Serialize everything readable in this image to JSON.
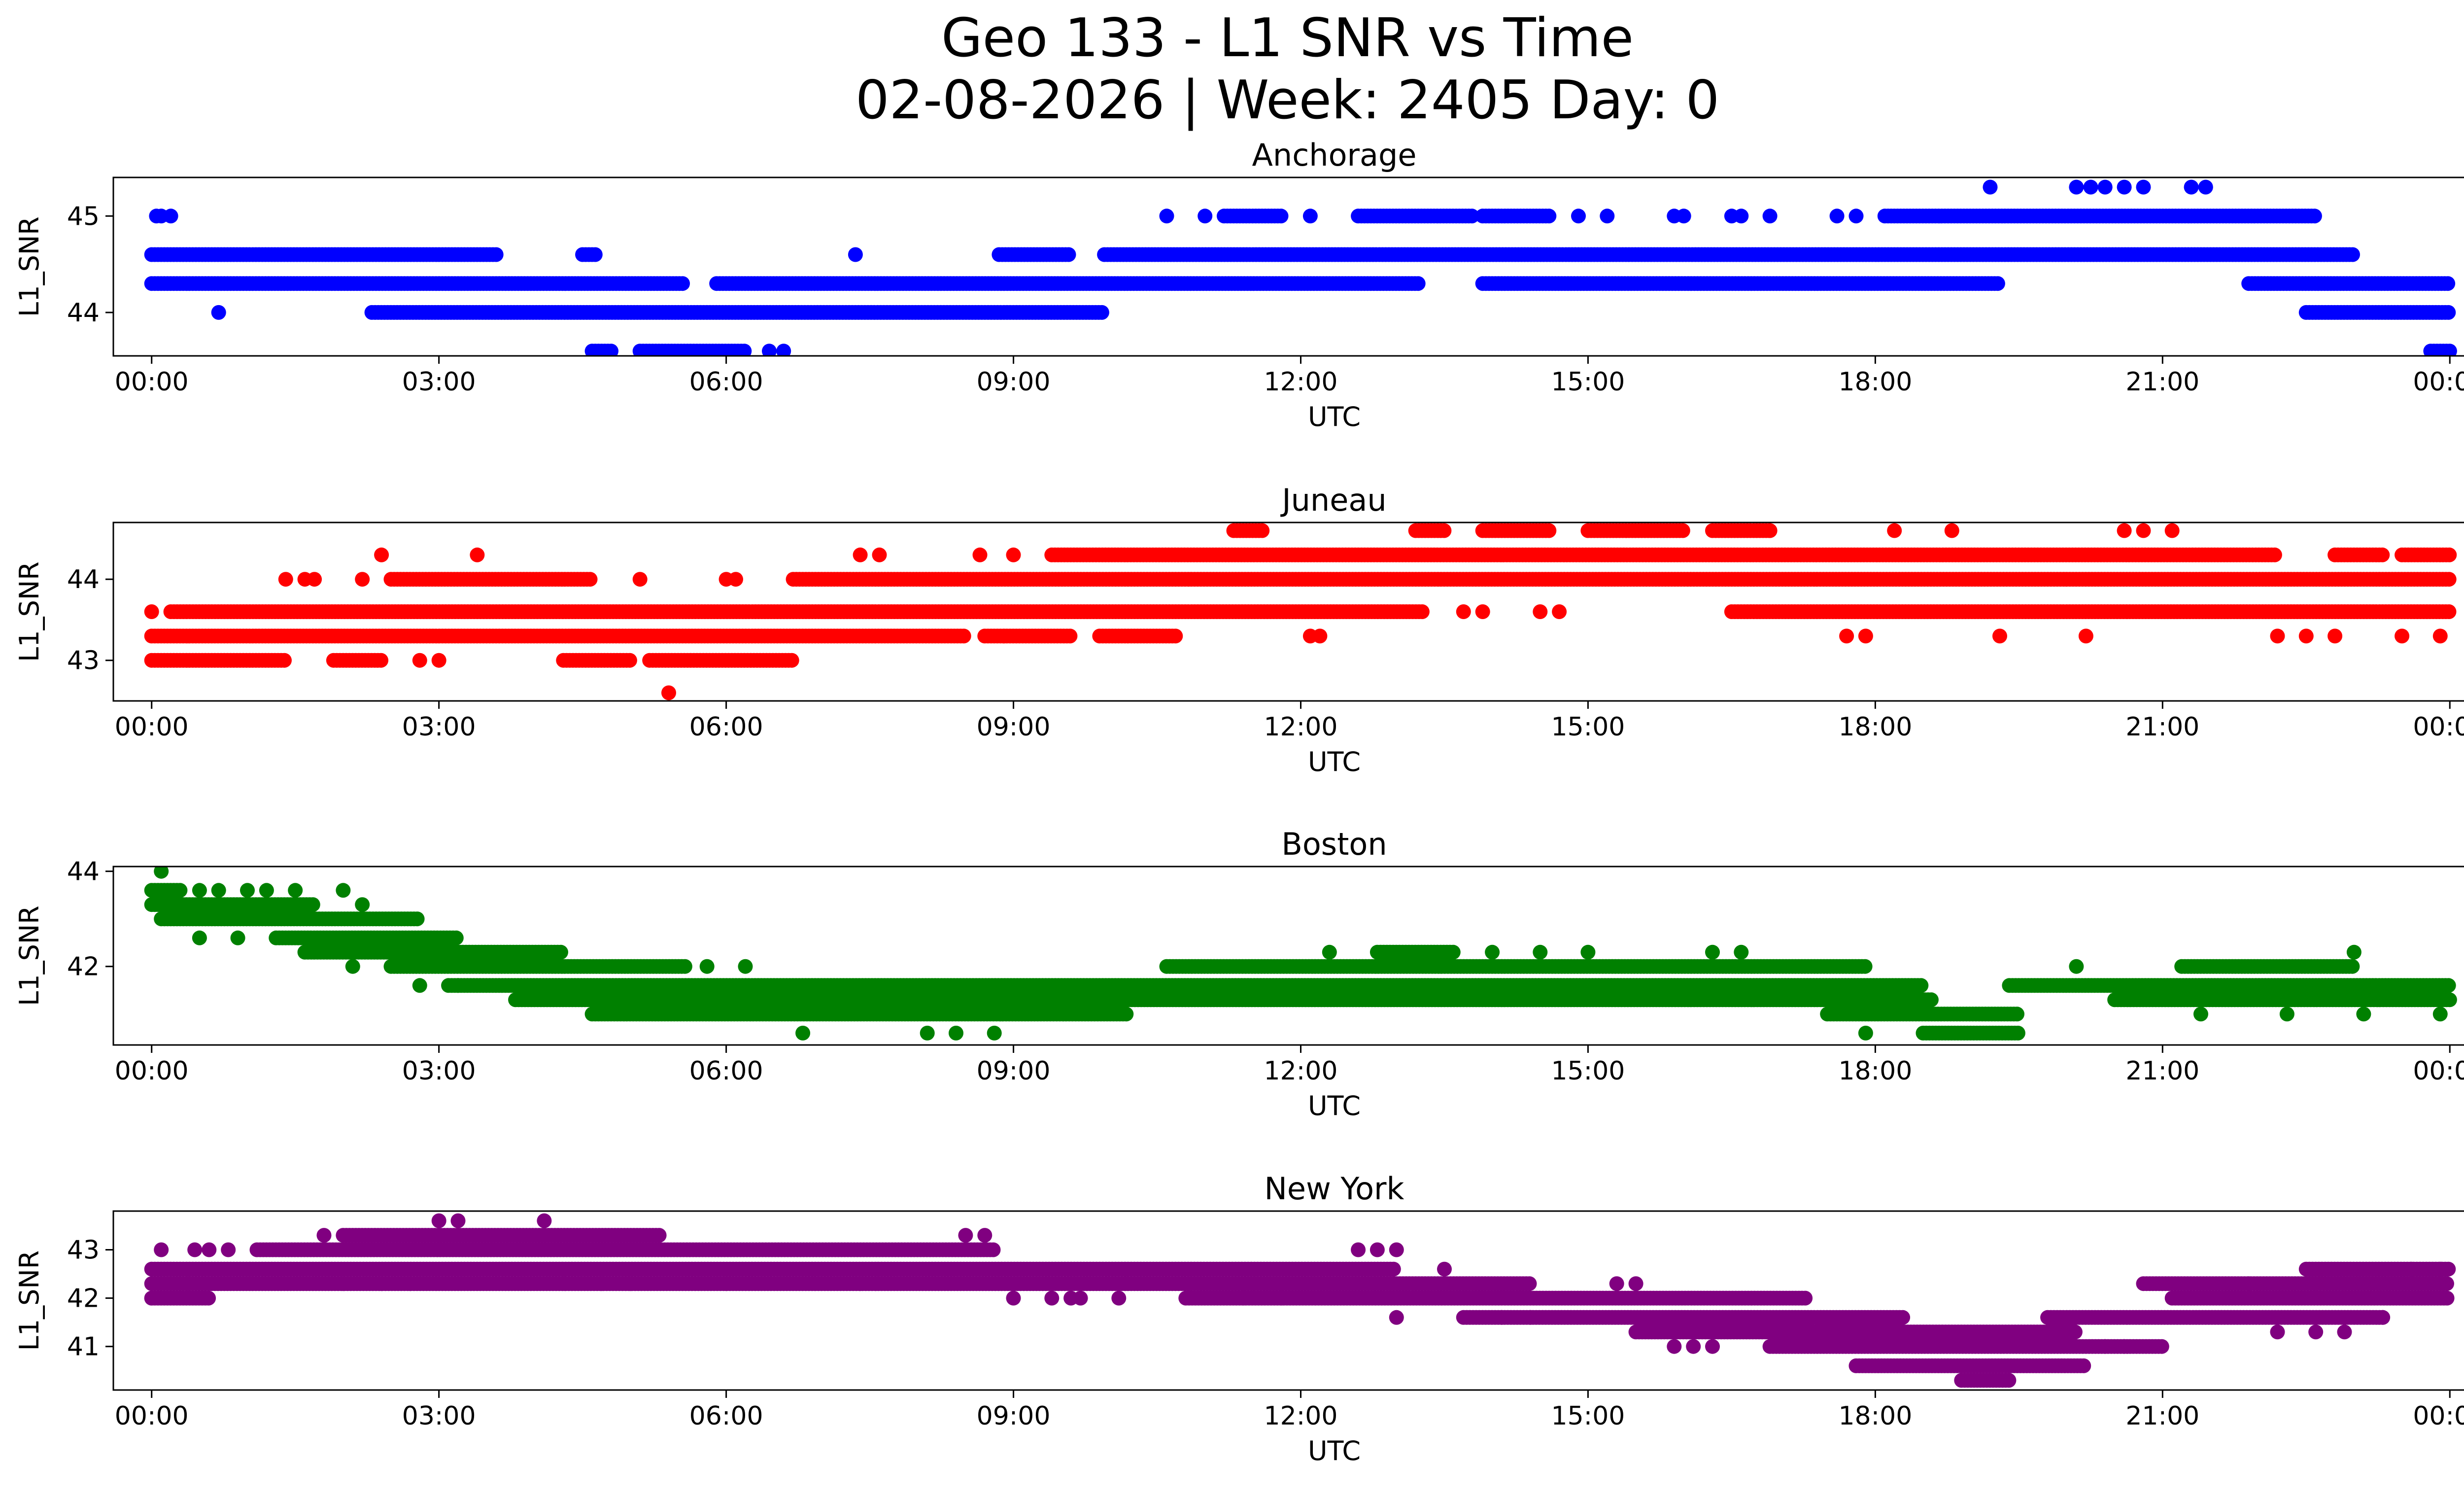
{
  "figure": {
    "title_line1": "Geo 133 - L1 SNR vs Time",
    "title_line2": "02-08-2026 | Week: 2405 Day: 0"
  },
  "chart_data": [
    {
      "type": "scatter",
      "title": "Anchorage",
      "xlabel": "UTC",
      "ylabel": "L1_SNR",
      "color": "#0000ff",
      "xlim": [
        -0.4,
        25.1
      ],
      "ylim": [
        43.55,
        45.4
      ],
      "x_tick_hours": [
        0,
        3,
        6,
        9,
        12,
        15,
        18,
        21,
        24
      ],
      "x_tick_labels": [
        "00:00",
        "03:00",
        "06:00",
        "09:00",
        "12:00",
        "15:00",
        "18:00",
        "21:00",
        "00:00"
      ],
      "y_ticks": [
        44,
        45
      ],
      "y_tick_labels": [
        "44",
        "45"
      ],
      "segments": [
        {
          "y": 44.6,
          "ranges": [
            [
              0,
              3.6
            ],
            [
              4.5,
              4.65
            ],
            [
              8.85,
              9.6
            ],
            [
              9.95,
              23
            ]
          ]
        },
        {
          "y": 44.3,
          "ranges": [
            [
              0,
              5.55
            ],
            [
              5.9,
              13.25
            ],
            [
              13.9,
              19.3
            ],
            [
              21.9,
              24
            ]
          ]
        },
        {
          "y": 44.0,
          "ranges": [
            [
              2.3,
              9.95
            ],
            [
              22.5,
              24
            ]
          ]
        },
        {
          "y": 45.0,
          "ranges": [
            [
              11.2,
              11.8
            ],
            [
              12.6,
              13.8
            ],
            [
              13.9,
              14.6
            ],
            [
              18.1,
              22.6
            ]
          ]
        },
        {
          "y": 43.6,
          "ranges": [
            [
              4.6,
              4.8
            ],
            [
              5.1,
              6.2
            ],
            [
              23.8,
              24
            ]
          ]
        }
      ],
      "points": [
        [
          0.05,
          45.0
        ],
        [
          0.1,
          45.0
        ],
        [
          0.2,
          45.0
        ],
        [
          0.7,
          44.0
        ],
        [
          7.35,
          44.6
        ],
        [
          6.45,
          43.6
        ],
        [
          6.6,
          43.6
        ],
        [
          10.6,
          45.0
        ],
        [
          11.0,
          45.0
        ],
        [
          12.1,
          45.0
        ],
        [
          14.9,
          45.0
        ],
        [
          15.2,
          45.0
        ],
        [
          15.9,
          45.0
        ],
        [
          16.0,
          45.0
        ],
        [
          16.5,
          45.0
        ],
        [
          16.6,
          45.0
        ],
        [
          16.9,
          45.0
        ],
        [
          17.6,
          45.0
        ],
        [
          17.8,
          45.0
        ],
        [
          19.2,
          45.3
        ],
        [
          20.1,
          45.3
        ],
        [
          20.25,
          45.3
        ],
        [
          20.4,
          45.3
        ],
        [
          20.6,
          45.3
        ],
        [
          20.8,
          45.3
        ],
        [
          21.3,
          45.3
        ],
        [
          21.45,
          45.3
        ]
      ]
    },
    {
      "type": "scatter",
      "title": "Juneau",
      "xlabel": "UTC",
      "ylabel": "L1_SNR",
      "color": "#ff0000",
      "xlim": [
        -0.4,
        25.1
      ],
      "ylim": [
        42.5,
        44.7
      ],
      "x_tick_hours": [
        0,
        3,
        6,
        9,
        12,
        15,
        18,
        21,
        24
      ],
      "x_tick_labels": [
        "00:00",
        "03:00",
        "06:00",
        "09:00",
        "12:00",
        "15:00",
        "18:00",
        "21:00",
        "00:00"
      ],
      "y_ticks": [
        43,
        44
      ],
      "y_tick_labels": [
        "43",
        "44"
      ],
      "segments": [
        {
          "y": 43.3,
          "ranges": [
            [
              0,
              8.5
            ],
            [
              8.7,
              9.6
            ],
            [
              9.9,
              10.7
            ]
          ]
        },
        {
          "y": 43.6,
          "ranges": [
            [
              0.2,
              13.3
            ],
            [
              16.5,
              24
            ]
          ]
        },
        {
          "y": 43.0,
          "ranges": [
            [
              0,
              1.4
            ],
            [
              1.9,
              2.4
            ],
            [
              4.3,
              5.0
            ],
            [
              5.2,
              6.7
            ]
          ]
        },
        {
          "y": 44.0,
          "ranges": [
            [
              2.5,
              4.6
            ],
            [
              6.7,
              24
            ]
          ]
        },
        {
          "y": 44.3,
          "ranges": [
            [
              9.4,
              22.2
            ],
            [
              22.8,
              23.3
            ],
            [
              23.5,
              24
            ]
          ]
        },
        {
          "y": 44.6,
          "ranges": [
            [
              11.3,
              11.6
            ],
            [
              13.2,
              13.5
            ],
            [
              13.9,
              14.6
            ],
            [
              15.0,
              16.0
            ],
            [
              16.3,
              16.9
            ]
          ]
        }
      ],
      "points": [
        [
          0.0,
          43.6
        ],
        [
          1.4,
          44.0
        ],
        [
          1.6,
          44.0
        ],
        [
          1.7,
          44.0
        ],
        [
          2.2,
          44.0
        ],
        [
          2.4,
          44.3
        ],
        [
          2.8,
          43.0
        ],
        [
          3.0,
          43.0
        ],
        [
          3.4,
          44.3
        ],
        [
          5.1,
          44.0
        ],
        [
          5.4,
          42.6
        ],
        [
          6.0,
          44.0
        ],
        [
          6.1,
          44.0
        ],
        [
          7.4,
          44.3
        ],
        [
          7.6,
          44.3
        ],
        [
          8.65,
          44.3
        ],
        [
          9.0,
          44.3
        ],
        [
          8.9,
          43.3
        ],
        [
          12.1,
          43.3
        ],
        [
          12.2,
          43.3
        ],
        [
          13.7,
          43.6
        ],
        [
          13.9,
          43.6
        ],
        [
          14.5,
          43.6
        ],
        [
          14.7,
          43.6
        ],
        [
          16.9,
          44.6
        ],
        [
          17.7,
          43.3
        ],
        [
          17.9,
          43.3
        ],
        [
          18.2,
          44.6
        ],
        [
          18.8,
          44.6
        ],
        [
          19.3,
          43.3
        ],
        [
          20.2,
          43.3
        ],
        [
          20.6,
          44.6
        ],
        [
          20.8,
          44.6
        ],
        [
          21.1,
          44.6
        ],
        [
          22.2,
          43.3
        ],
        [
          22.5,
          43.3
        ],
        [
          22.8,
          43.3
        ],
        [
          23.5,
          43.3
        ],
        [
          23.9,
          43.3
        ]
      ]
    },
    {
      "type": "scatter",
      "title": "Boston",
      "xlabel": "UTC",
      "ylabel": "L1_SNR",
      "color": "#008000",
      "xlim": [
        -0.4,
        25.1
      ],
      "ylim": [
        40.35,
        44.1
      ],
      "x_tick_hours": [
        0,
        3,
        6,
        9,
        12,
        15,
        18,
        21,
        24
      ],
      "x_tick_labels": [
        "00:00",
        "03:00",
        "06:00",
        "09:00",
        "12:00",
        "15:00",
        "18:00",
        "21:00",
        "00:00"
      ],
      "y_ticks": [
        42,
        44
      ],
      "y_tick_labels": [
        "42",
        "44"
      ],
      "segments": [
        {
          "y": 43.6,
          "ranges": [
            [
              0,
              0.3
            ]
          ]
        },
        {
          "y": 43.3,
          "ranges": [
            [
              0,
              1.7
            ]
          ]
        },
        {
          "y": 43.0,
          "ranges": [
            [
              0.1,
              2.8
            ]
          ]
        },
        {
          "y": 42.6,
          "ranges": [
            [
              1.3,
              3.2
            ]
          ]
        },
        {
          "y": 42.3,
          "ranges": [
            [
              1.6,
              4.3
            ]
          ]
        },
        {
          "y": 42.0,
          "ranges": [
            [
              2.5,
              5.6
            ],
            [
              10.6,
              17.9
            ],
            [
              21.2,
              23
            ]
          ]
        },
        {
          "y": 41.6,
          "ranges": [
            [
              3.1,
              18.5
            ],
            [
              19.4,
              24
            ]
          ]
        },
        {
          "y": 41.3,
          "ranges": [
            [
              3.8,
              18.6
            ],
            [
              20.5,
              24
            ]
          ]
        },
        {
          "y": 41.0,
          "ranges": [
            [
              4.6,
              10.2
            ],
            [
              17.5,
              19.5
            ]
          ]
        },
        {
          "y": 40.6,
          "ranges": [
            [
              18.5,
              19.5
            ]
          ]
        },
        {
          "y": 42.3,
          "ranges": [
            [
              12.8,
              13.6
            ]
          ]
        }
      ],
      "points": [
        [
          0.1,
          44.0
        ],
        [
          0.5,
          43.6
        ],
        [
          0.7,
          43.6
        ],
        [
          1.0,
          43.6
        ],
        [
          1.2,
          43.6
        ],
        [
          1.5,
          43.6
        ],
        [
          2.0,
          43.6
        ],
        [
          2.2,
          43.3
        ],
        [
          0.5,
          42.6
        ],
        [
          0.9,
          42.6
        ],
        [
          2.1,
          42.0
        ],
        [
          2.8,
          41.6
        ],
        [
          3.2,
          41.6
        ],
        [
          5.8,
          42.0
        ],
        [
          6.2,
          42.0
        ],
        [
          6.8,
          40.6
        ],
        [
          8.1,
          40.6
        ],
        [
          8.4,
          40.6
        ],
        [
          8.8,
          40.6
        ],
        [
          12.3,
          42.3
        ],
        [
          14.0,
          42.3
        ],
        [
          14.5,
          42.3
        ],
        [
          15.0,
          42.3
        ],
        [
          16.3,
          42.3
        ],
        [
          16.6,
          42.3
        ],
        [
          17.9,
          40.6
        ],
        [
          20.1,
          42.0
        ],
        [
          21.4,
          41.0
        ],
        [
          22.3,
          41.0
        ],
        [
          23.1,
          41.0
        ],
        [
          23.9,
          41.0
        ],
        [
          23.0,
          42.3
        ]
      ]
    },
    {
      "type": "scatter",
      "title": "New York",
      "xlabel": "UTC",
      "ylabel": "L1_SNR",
      "color": "#800080",
      "xlim": [
        -0.4,
        25.1
      ],
      "ylim": [
        40.1,
        43.8
      ],
      "x_tick_hours": [
        0,
        3,
        6,
        9,
        12,
        15,
        18,
        21,
        24
      ],
      "x_tick_labels": [
        "00:00",
        "03:00",
        "06:00",
        "09:00",
        "12:00",
        "15:00",
        "18:00",
        "21:00",
        "00:00"
      ],
      "y_ticks": [
        41,
        42,
        43
      ],
      "y_tick_labels": [
        "41",
        "42",
        "43"
      ],
      "segments": [
        {
          "y": 42.0,
          "ranges": [
            [
              0,
              0.6
            ],
            [
              10.8,
              17.3
            ],
            [
              21.1,
              24
            ]
          ]
        },
        {
          "y": 42.3,
          "ranges": [
            [
              0,
              14.4
            ],
            [
              20.8,
              24
            ]
          ]
        },
        {
          "y": 42.6,
          "ranges": [
            [
              0,
              13.0
            ],
            [
              22.5,
              24
            ]
          ]
        },
        {
          "y": 43.0,
          "ranges": [
            [
              1.1,
              8.8
            ]
          ]
        },
        {
          "y": 43.3,
          "ranges": [
            [
              2.0,
              5.3
            ]
          ]
        },
        {
          "y": 41.6,
          "ranges": [
            [
              13.7,
              18.3
            ],
            [
              19.8,
              23.3
            ]
          ]
        },
        {
          "y": 41.3,
          "ranges": [
            [
              15.5,
              20.1
            ]
          ]
        },
        {
          "y": 41.0,
          "ranges": [
            [
              16.9,
              21.0
            ]
          ]
        },
        {
          "y": 40.6,
          "ranges": [
            [
              17.8,
              20.2
            ]
          ]
        },
        {
          "y": 40.3,
          "ranges": [
            [
              18.9,
              19.4
            ]
          ]
        }
      ],
      "points": [
        [
          0.0,
          42.0
        ],
        [
          0.1,
          43.0
        ],
        [
          0.45,
          43.0
        ],
        [
          0.6,
          43.0
        ],
        [
          0.8,
          43.0
        ],
        [
          1.8,
          43.3
        ],
        [
          2.0,
          42.3
        ],
        [
          2.4,
          42.3
        ],
        [
          2.7,
          42.3
        ],
        [
          3.0,
          43.6
        ],
        [
          3.2,
          43.6
        ],
        [
          4.1,
          43.6
        ],
        [
          4.7,
          42.3
        ],
        [
          5.0,
          42.3
        ],
        [
          6.0,
          42.3
        ],
        [
          7.4,
          42.3
        ],
        [
          8.5,
          43.3
        ],
        [
          8.7,
          43.3
        ],
        [
          9.0,
          42.0
        ],
        [
          9.4,
          42.0
        ],
        [
          9.6,
          42.0
        ],
        [
          9.7,
          42.0
        ],
        [
          10.1,
          42.0
        ],
        [
          11.4,
          42.0
        ],
        [
          11.8,
          42.0
        ],
        [
          12.6,
          43.0
        ],
        [
          12.8,
          43.0
        ],
        [
          13.0,
          43.0
        ],
        [
          13.0,
          41.6
        ],
        [
          13.5,
          42.6
        ],
        [
          14.1,
          41.6
        ],
        [
          14.4,
          41.6
        ],
        [
          15.3,
          42.3
        ],
        [
          15.5,
          42.3
        ],
        [
          15.9,
          41.0
        ],
        [
          16.1,
          41.0
        ],
        [
          16.3,
          41.0
        ],
        [
          20.4,
          41.0
        ],
        [
          20.6,
          41.0
        ],
        [
          21.9,
          42.3
        ],
        [
          22.2,
          41.3
        ],
        [
          22.6,
          41.3
        ],
        [
          22.9,
          41.3
        ],
        [
          23.6,
          42.6
        ],
        [
          23.9,
          42.6
        ],
        [
          23.3,
          41.6
        ]
      ]
    }
  ]
}
